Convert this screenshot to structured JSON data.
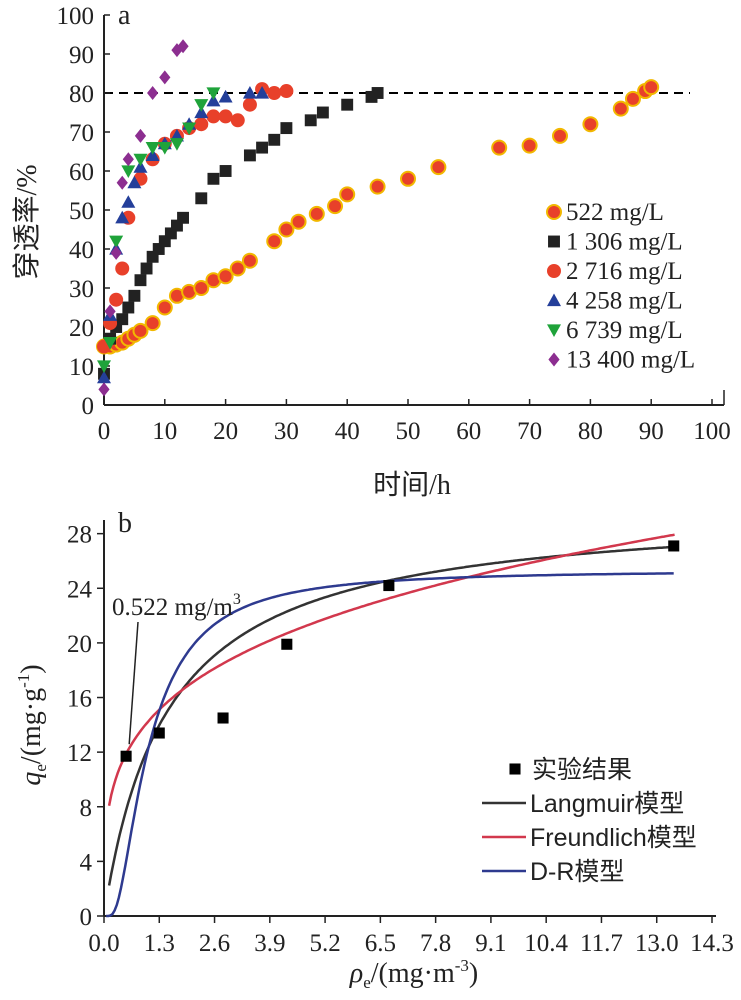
{
  "chart_data": [
    {
      "type": "scatter",
      "panel_label": "a",
      "xlabel": "时间/h",
      "ylabel": "穿透率/%",
      "xlim": [
        0,
        100
      ],
      "ylim": [
        0,
        100
      ],
      "xticks": [
        "0",
        "10",
        "20",
        "30",
        "40",
        "50",
        "60",
        "70",
        "80",
        "90",
        "100"
      ],
      "yticks": [
        "0",
        "10",
        "20",
        "30",
        "40",
        "50",
        "60",
        "70",
        "80",
        "90",
        "100"
      ],
      "reference_line": {
        "y": 80,
        "style": "dashed",
        "color": "#000000"
      },
      "legend_position": "right-center",
      "series": [
        {
          "name": "522 mg/L",
          "marker": "circle",
          "color": "#e8402a",
          "edge": "#f2b800",
          "points": [
            [
              0,
              15
            ],
            [
              1,
              15
            ],
            [
              2,
              15.5
            ],
            [
              3,
              16
            ],
            [
              4,
              17
            ],
            [
              5,
              18
            ],
            [
              6,
              19
            ],
            [
              8,
              21
            ],
            [
              10,
              25
            ],
            [
              12,
              28
            ],
            [
              14,
              29
            ],
            [
              16,
              30
            ],
            [
              18,
              32
            ],
            [
              20,
              33
            ],
            [
              22,
              35
            ],
            [
              24,
              37
            ],
            [
              28,
              42
            ],
            [
              30,
              45
            ],
            [
              32,
              47
            ],
            [
              35,
              49
            ],
            [
              38,
              51
            ],
            [
              40,
              54
            ],
            [
              45,
              56
            ],
            [
              50,
              58
            ],
            [
              55,
              61
            ],
            [
              65,
              66
            ],
            [
              70,
              66.5
            ],
            [
              75,
              69
            ],
            [
              80,
              72
            ],
            [
              85,
              76
            ],
            [
              87,
              78.5
            ],
            [
              89,
              80.5
            ],
            [
              90,
              81.5
            ]
          ]
        },
        {
          "name": "1 306 mg/L",
          "marker": "square",
          "color": "#222222",
          "points": [
            [
              0,
              8
            ],
            [
              1,
              17
            ],
            [
              2,
              20
            ],
            [
              3,
              22
            ],
            [
              4,
              25
            ],
            [
              5,
              28
            ],
            [
              6,
              32
            ],
            [
              7,
              35
            ],
            [
              8,
              38
            ],
            [
              9,
              40
            ],
            [
              10,
              42
            ],
            [
              11,
              44
            ],
            [
              12,
              46
            ],
            [
              13,
              48
            ],
            [
              16,
              53
            ],
            [
              18,
              58
            ],
            [
              20,
              60
            ],
            [
              24,
              64
            ],
            [
              26,
              66
            ],
            [
              28,
              68
            ],
            [
              30,
              71
            ],
            [
              34,
              73
            ],
            [
              36,
              75
            ],
            [
              40,
              77
            ],
            [
              44,
              79
            ],
            [
              45,
              80
            ]
          ]
        },
        {
          "name": "2 716 mg/L",
          "marker": "circle",
          "color": "#e8402a",
          "points": [
            [
              0,
              15
            ],
            [
              1,
              21
            ],
            [
              2,
              27
            ],
            [
              3,
              35
            ],
            [
              4,
              48
            ],
            [
              6,
              58
            ],
            [
              8,
              63
            ],
            [
              10,
              67
            ],
            [
              12,
              69
            ],
            [
              14,
              71
            ],
            [
              16,
              72
            ],
            [
              18,
              74
            ],
            [
              20,
              74
            ],
            [
              22,
              73
            ],
            [
              24,
              77
            ],
            [
              26,
              81
            ],
            [
              28,
              80
            ],
            [
              30,
              80.5
            ]
          ]
        },
        {
          "name": "4 258 mg/L",
          "marker": "triangle-up",
          "color": "#243f9a",
          "points": [
            [
              0,
              7
            ],
            [
              1,
              23
            ],
            [
              2,
              40
            ],
            [
              3,
              48
            ],
            [
              4,
              52
            ],
            [
              5,
              57
            ],
            [
              6,
              61
            ],
            [
              8,
              64
            ],
            [
              10,
              67
            ],
            [
              12,
              69
            ],
            [
              14,
              72
            ],
            [
              16,
              75
            ],
            [
              18,
              78
            ],
            [
              20,
              79
            ],
            [
              24,
              80
            ],
            [
              26,
              80
            ]
          ]
        },
        {
          "name": "6 739 mg/L",
          "marker": "triangle-down",
          "color": "#1fa33a",
          "points": [
            [
              0,
              10
            ],
            [
              1,
              16
            ],
            [
              2,
              42
            ],
            [
              4,
              60
            ],
            [
              6,
              63
            ],
            [
              8,
              66
            ],
            [
              10,
              66
            ],
            [
              12,
              67
            ],
            [
              14,
              71
            ],
            [
              16,
              77
            ],
            [
              18,
              80
            ]
          ]
        },
        {
          "name": "13 400 mg/L",
          "marker": "diamond",
          "color": "#8c2e90",
          "points": [
            [
              0,
              4
            ],
            [
              1,
              24
            ],
            [
              2,
              39
            ],
            [
              3,
              57
            ],
            [
              4,
              63
            ],
            [
              6,
              69
            ],
            [
              8,
              80
            ],
            [
              10,
              84
            ],
            [
              12,
              91
            ],
            [
              13,
              92
            ]
          ]
        }
      ]
    },
    {
      "type": "scatter+line",
      "panel_label": "b",
      "xlabel": "ρe/(mg·m-3)",
      "ylabel": "qe/(mg·g-1)",
      "xlim": [
        0,
        14.3
      ],
      "ylim": [
        0,
        29
      ],
      "xticks": [
        "0.0",
        "1.3",
        "2.6",
        "3.9",
        "5.2",
        "6.5",
        "7.8",
        "9.1",
        "10.4",
        "11.7",
        "13.0",
        "14.3"
      ],
      "yticks": [
        "0",
        "4",
        "8",
        "12",
        "16",
        "20",
        "24",
        "28"
      ],
      "annotation": {
        "text": "0.522 mg/m3",
        "points_to": [
          0.522,
          11.7
        ]
      },
      "legend_position": "bottom-right",
      "experimental": {
        "name": "实验结果",
        "marker": "square",
        "color": "#000000",
        "points": [
          [
            0.52,
            11.7
          ],
          [
            1.3,
            13.4
          ],
          [
            2.8,
            14.5
          ],
          [
            4.3,
            19.9
          ],
          [
            6.7,
            24.2
          ],
          [
            13.4,
            27.1
          ]
        ]
      },
      "models": [
        {
          "name": "Langmuir模型",
          "color": "#333333",
          "kind": "langmuir",
          "qm": 30.05,
          "KL": 0.6685
        },
        {
          "name": "Freundlich模型",
          "color": "#d2384d",
          "kind": "freundlich",
          "KF": 14.1,
          "n": 3.8
        },
        {
          "name": "D-R模型",
          "color": "#2e3a8f",
          "kind": "dubinin-radushkevich",
          "qm": 25.3,
          "B": 1.6
        }
      ]
    }
  ],
  "palette": {
    "axis": "#222222",
    "black": "#000000"
  }
}
